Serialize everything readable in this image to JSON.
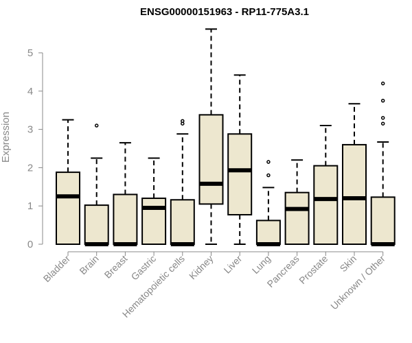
{
  "chart_data": {
    "type": "boxplot",
    "title": "ENSG00000151963 - RP11-775A3.1",
    "ylabel": "Expression",
    "ylim": [
      0,
      5.65
    ],
    "yticks": [
      0,
      1,
      2,
      3,
      4,
      5
    ],
    "categories": [
      "Bladder",
      "Brain",
      "Breast",
      "Gastric",
      "Hematopoietic cells",
      "Kidney",
      "Liver",
      "Lung",
      "Pancreas",
      "Prostate",
      "Skin",
      "Unknown / Other"
    ],
    "boxes": [
      {
        "name": "Bladder",
        "whisker_low": 0,
        "q1": 0,
        "median": 1.25,
        "q3": 1.88,
        "whisker_high": 3.25,
        "outliers": []
      },
      {
        "name": "Brain",
        "whisker_low": 0,
        "q1": 0,
        "median": 0,
        "q3": 1.02,
        "whisker_high": 2.25,
        "outliers": [
          3.1
        ]
      },
      {
        "name": "Breast",
        "whisker_low": 0,
        "q1": 0,
        "median": 0,
        "q3": 1.3,
        "whisker_high": 2.65,
        "outliers": []
      },
      {
        "name": "Gastric",
        "whisker_low": 0,
        "q1": 0,
        "median": 0.95,
        "q3": 1.2,
        "whisker_high": 2.25,
        "outliers": []
      },
      {
        "name": "Hematopoietic cells",
        "whisker_low": 0,
        "q1": 0,
        "median": 0,
        "q3": 1.16,
        "whisker_high": 2.88,
        "outliers": [
          3.15,
          3.22
        ]
      },
      {
        "name": "Kidney",
        "whisker_low": 0,
        "q1": 1.05,
        "median": 1.58,
        "q3": 3.38,
        "whisker_high": 5.62,
        "outliers": []
      },
      {
        "name": "Liver",
        "whisker_low": 0,
        "q1": 0.77,
        "median": 1.93,
        "q3": 2.88,
        "whisker_high": 4.42,
        "outliers": []
      },
      {
        "name": "Lung",
        "whisker_low": 0,
        "q1": 0,
        "median": 0,
        "q3": 0.62,
        "whisker_high": 1.48,
        "outliers": [
          1.8,
          2.15
        ]
      },
      {
        "name": "Pancreas",
        "whisker_low": 0,
        "q1": 0,
        "median": 0.92,
        "q3": 1.35,
        "whisker_high": 2.2,
        "outliers": []
      },
      {
        "name": "Prostate",
        "whisker_low": 0,
        "q1": 0,
        "median": 1.18,
        "q3": 2.05,
        "whisker_high": 3.1,
        "outliers": []
      },
      {
        "name": "Skin",
        "whisker_low": 0,
        "q1": 0,
        "median": 1.2,
        "q3": 2.6,
        "whisker_high": 3.67,
        "outliers": []
      },
      {
        "name": "Unknown / Other",
        "whisker_low": 0,
        "q1": 0,
        "median": 0,
        "q3": 1.23,
        "whisker_high": 2.67,
        "outliers": [
          3.15,
          3.3,
          3.75,
          4.2
        ]
      }
    ],
    "box_fill": "#ede7cf",
    "box_stroke": "#000000",
    "axis_color": "#888888",
    "grid": false,
    "legend": false
  }
}
